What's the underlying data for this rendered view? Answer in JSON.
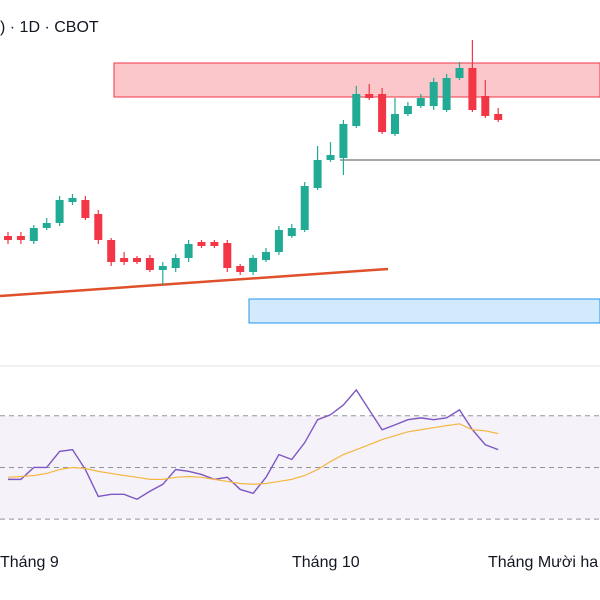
{
  "chart_data": {
    "type": "candlestick",
    "title": ") · 1D · CBOT",
    "ylim": [
      0,
      350
    ],
    "up_color": "#22ab94",
    "down_color": "#f23645",
    "open": [
      114,
      114,
      109,
      122,
      127,
      148,
      150,
      136,
      110,
      92,
      92,
      92,
      80,
      82,
      92,
      108,
      108,
      107,
      84,
      78,
      90,
      98,
      114,
      120,
      162,
      190,
      192,
      224,
      256,
      256,
      216,
      236,
      244,
      244,
      240,
      272,
      282,
      254,
      236
    ],
    "high": [
      118,
      118,
      125,
      132,
      154,
      156,
      154,
      140,
      112,
      98,
      94,
      95,
      88,
      96,
      110,
      110,
      110,
      110,
      86,
      95,
      102,
      124,
      126,
      168,
      204,
      208,
      230,
      264,
      266,
      262,
      252,
      248,
      256,
      272,
      276,
      288,
      310,
      270,
      242
    ],
    "low": [
      106,
      106,
      106,
      120,
      124,
      145,
      130,
      106,
      84,
      85,
      86,
      78,
      65,
      78,
      88,
      102,
      102,
      78,
      75,
      75,
      88,
      95,
      112,
      118,
      160,
      188,
      175,
      222,
      250,
      216,
      214,
      234,
      242,
      240,
      238,
      270,
      238,
      232,
      228
    ],
    "close": [
      110,
      110,
      122,
      127,
      150,
      152,
      132,
      110,
      88,
      88,
      88,
      80,
      84,
      92,
      106,
      104,
      104,
      82,
      78,
      92,
      98,
      120,
      122,
      164,
      190,
      195,
      226,
      256,
      252,
      218,
      236,
      244,
      252,
      268,
      272,
      282,
      240,
      234,
      230
    ],
    "zones": [
      {
        "range": [
          253,
          287
        ],
        "color": "#f23645"
      },
      {
        "range": [
          27,
          51
        ],
        "color": "#2196f3"
      }
    ],
    "level": 190,
    "trendline": {
      "values": [
        54,
        81
      ],
      "color": "#e0502a"
    },
    "x_labels": [
      "Tháng 9",
      "Tháng 10",
      "Tháng Mười ha"
    ],
    "rsi": {
      "ylim": [
        20,
        88.5
      ],
      "yticks": [
        30,
        50,
        70
      ],
      "series": [
        {
          "color": "#7e57c2",
          "values": [
            45.4,
            45.4,
            50,
            50,
            56.2,
            56.9,
            49.2,
            38.8,
            39.6,
            39.6,
            37.7,
            40.8,
            43.5,
            49.2,
            48.5,
            47.3,
            45.4,
            46.2,
            41.5,
            40,
            46.2,
            55,
            53.1,
            59.6,
            68.5,
            70.4,
            74.2,
            80,
            72.3,
            64.6,
            66.5,
            68.5,
            69.2,
            68.5,
            69.2,
            72.3,
            64.6,
            58.8,
            56.9
          ]
        },
        {
          "color": "#f5b642",
          "values": [
            46.2,
            46.5,
            46.9,
            47.7,
            49.2,
            50,
            49.6,
            48.5,
            47.7,
            46.9,
            46.2,
            45.4,
            45.4,
            46.2,
            46.5,
            46.2,
            45.4,
            44.6,
            43.8,
            43.5,
            43.8,
            44.6,
            45.4,
            46.9,
            49.2,
            52.3,
            55,
            56.9,
            58.8,
            60.8,
            62.3,
            63.8,
            64.6,
            65.4,
            66.2,
            66.9,
            64.6,
            64.2,
            63.1
          ]
        }
      ]
    }
  }
}
